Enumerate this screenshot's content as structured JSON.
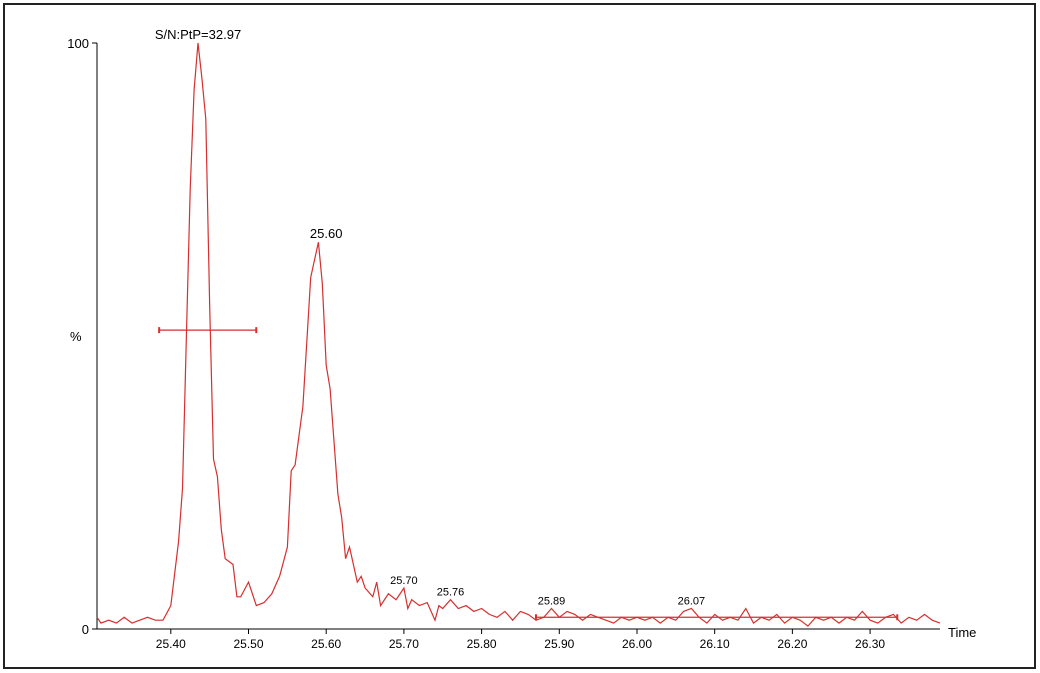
{
  "chart_data": {
    "type": "line",
    "xlabel": "Time",
    "ylabel": "%",
    "xlim": [
      25.305,
      26.39
    ],
    "ylim": [
      0,
      100
    ],
    "xticks": [
      {
        "value": 25.4,
        "label": "25.40"
      },
      {
        "value": 25.5,
        "label": "25.50"
      },
      {
        "value": 25.6,
        "label": "25.60"
      },
      {
        "value": 25.7,
        "label": "25.70"
      },
      {
        "value": 25.8,
        "label": "25.80"
      },
      {
        "value": 25.9,
        "label": "25.90"
      },
      {
        "value": 26.0,
        "label": "26.00"
      },
      {
        "value": 26.1,
        "label": "26.10"
      },
      {
        "value": 26.2,
        "label": "26.20"
      },
      {
        "value": 26.3,
        "label": "26.30"
      }
    ],
    "yticks": [
      0,
      100
    ],
    "series": [
      {
        "color": "#d62f2f",
        "x": [
          25.305,
          25.31,
          25.32,
          25.33,
          25.34,
          25.35,
          25.36,
          25.37,
          25.38,
          25.39,
          25.4,
          25.41,
          25.415,
          25.42,
          25.425,
          25.43,
          25.435,
          25.44,
          25.445,
          25.45,
          25.455,
          25.46,
          25.465,
          25.47,
          25.48,
          25.485,
          25.49,
          25.5,
          25.505,
          25.51,
          25.52,
          25.53,
          25.54,
          25.55,
          25.555,
          25.56,
          25.57,
          25.58,
          25.59,
          25.595,
          25.6,
          25.605,
          25.61,
          25.615,
          25.62,
          25.625,
          25.63,
          25.64,
          25.645,
          25.65,
          25.66,
          25.665,
          25.67,
          25.68,
          25.69,
          25.7,
          25.705,
          25.71,
          25.72,
          25.73,
          25.74,
          25.745,
          25.75,
          25.76,
          25.77,
          25.78,
          25.79,
          25.8,
          25.81,
          25.82,
          25.83,
          25.84,
          25.85,
          25.86,
          25.87,
          25.88,
          25.89,
          25.9,
          25.91,
          25.92,
          25.93,
          25.94,
          25.95,
          25.96,
          25.97,
          25.98,
          25.99,
          26.0,
          26.01,
          26.02,
          26.03,
          26.04,
          26.05,
          26.06,
          26.07,
          26.08,
          26.09,
          26.1,
          26.11,
          26.12,
          26.13,
          26.14,
          26.15,
          26.16,
          26.17,
          26.18,
          26.19,
          26.2,
          26.21,
          26.22,
          26.23,
          26.24,
          26.25,
          26.26,
          26.27,
          26.28,
          26.29,
          26.3,
          26.31,
          26.32,
          26.33,
          26.34,
          26.35,
          26.36,
          26.37,
          26.38,
          26.39
        ],
        "values": [
          2,
          1,
          1.5,
          1,
          2,
          1,
          1.5,
          2,
          1.5,
          1.5,
          4,
          15,
          24,
          50,
          75,
          92,
          100,
          94,
          87,
          55,
          29,
          26,
          17,
          12,
          11,
          5.5,
          5.5,
          8,
          6,
          4,
          4.5,
          6,
          9,
          14,
          27,
          28,
          38,
          60,
          66,
          59,
          45,
          41,
          32,
          23,
          19,
          12,
          14,
          8,
          9,
          7,
          5.5,
          8,
          4,
          6,
          5,
          7,
          3.5,
          5,
          4,
          4.5,
          1.5,
          4,
          3.5,
          5,
          3.5,
          4,
          3,
          3.5,
          2.5,
          2,
          3,
          1.5,
          3,
          2.5,
          1.5,
          2,
          3.5,
          2,
          3,
          2.5,
          1.5,
          2.5,
          2,
          1.5,
          1,
          2,
          1.5,
          2,
          1.5,
          2,
          1,
          2,
          1.5,
          3,
          3.5,
          2,
          1,
          2.5,
          1.5,
          2,
          1.5,
          3.5,
          1,
          2,
          1.5,
          2.5,
          1,
          2,
          1.5,
          0.5,
          2,
          1.5,
          2,
          1,
          2,
          1.5,
          3,
          1.5,
          1,
          2,
          2.5,
          1,
          2,
          1.5,
          2.5,
          1.5,
          1
        ]
      }
    ],
    "annotations": [
      {
        "text": "S/N:PtP=32.97",
        "x": 25.435,
        "y": 100
      },
      {
        "text": "25.60",
        "x": 25.6,
        "y": 66
      },
      {
        "text": "25.70",
        "x": 25.7,
        "y": 7
      },
      {
        "text": "25.76",
        "x": 25.76,
        "y": 5
      },
      {
        "text": "25.89",
        "x": 25.89,
        "y": 3.5
      },
      {
        "text": "26.07",
        "x": 26.07,
        "y": 3.5
      }
    ],
    "markers": [
      {
        "x": [
          25.385,
          25.51
        ],
        "y": 51
      },
      {
        "x": [
          25.87,
          26.335
        ],
        "y": 2
      }
    ]
  }
}
